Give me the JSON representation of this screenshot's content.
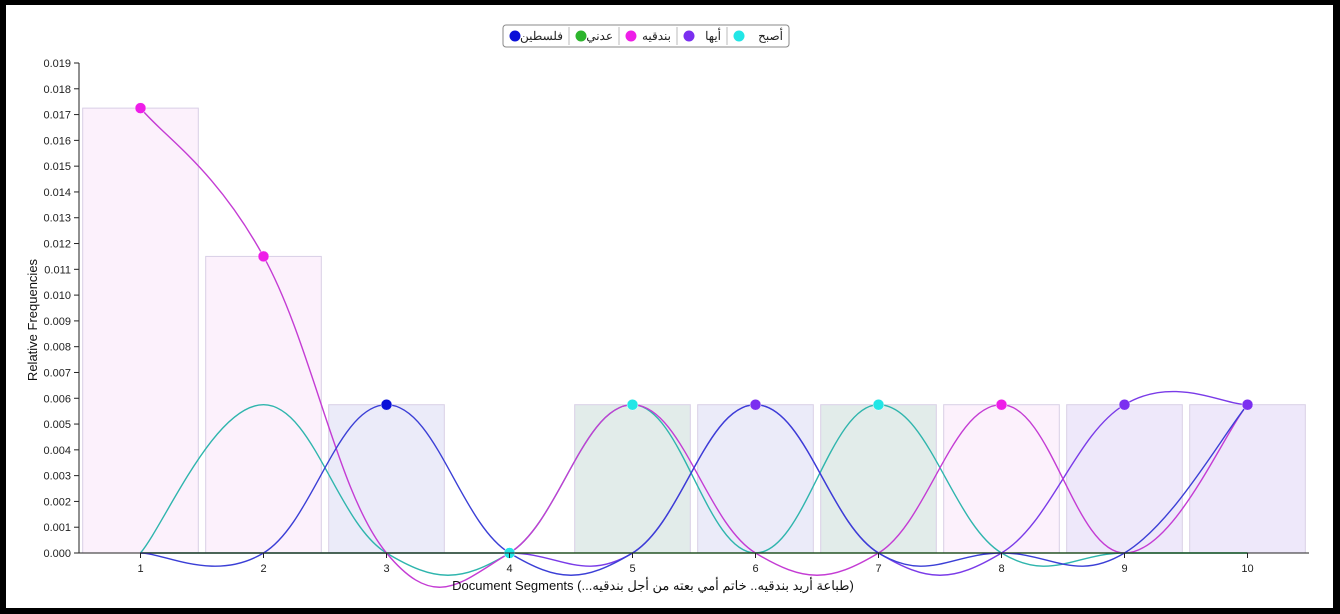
{
  "chart_data": {
    "type": "line",
    "xlabel": "Document Segments (...طباعة أريد بندقيه.. خاتم أمي بعته من أجل بندقيه)",
    "ylabel": "Relative Frequencies",
    "categories": [
      "1",
      "2",
      "3",
      "4",
      "5",
      "6",
      "7",
      "8",
      "9",
      "10"
    ],
    "ylim": [
      0,
      0.019
    ],
    "y_ticks": [
      "0.000",
      "0.001",
      "0.002",
      "0.003",
      "0.004",
      "0.005",
      "0.006",
      "0.007",
      "0.008",
      "0.009",
      "0.010",
      "0.011",
      "0.012",
      "0.013",
      "0.014",
      "0.015",
      "0.016",
      "0.017",
      "0.018",
      "0.019"
    ],
    "grid": false,
    "legend_position": "top-center",
    "series": [
      {
        "name": "أصبح",
        "color": "#22e6e6",
        "line_color": "#2fb5ad",
        "bar_color": "#dde9e6",
        "values": [
          0,
          0.00575,
          0,
          0,
          0.00575,
          0,
          0.00575,
          0,
          0,
          0
        ]
      },
      {
        "name": "أيها",
        "color": "#7b2ff0",
        "line_color": "#7a3be8",
        "bar_color": "#ebe4f9",
        "values": [
          0,
          0,
          0,
          0,
          0,
          0.00575,
          0,
          0,
          0.00575,
          0.00575
        ]
      },
      {
        "name": "بندقيه",
        "color": "#ee1ee8",
        "line_color": "#c43cd4",
        "bar_color": "#fbeefb",
        "values": [
          0.01725,
          0.0115,
          0,
          0,
          0.00575,
          0,
          0,
          0.00575,
          0,
          0.00575
        ]
      },
      {
        "name": "عدني",
        "color": "#2db52d",
        "line_color": "#2db52d",
        "bar_color": "#e6f2e6",
        "values": [
          0,
          0,
          0,
          0,
          0,
          0,
          0,
          0,
          0,
          0
        ]
      },
      {
        "name": "فلسطين",
        "color": "#0a10d8",
        "line_color": "#3b3fd6",
        "bar_color": "#e8e8f8",
        "values": [
          0,
          0,
          0.00575,
          0,
          0,
          0.00575,
          0,
          0,
          0,
          0.00575
        ]
      }
    ],
    "bars": {
      "values": [
        0.01725,
        0.0115,
        0.00575,
        0,
        0.00575,
        0.00575,
        0.00575,
        0.00575,
        0.00575,
        0.00575
      ],
      "series_index": [
        2,
        2,
        4,
        null,
        0,
        4,
        0,
        2,
        1,
        1
      ]
    },
    "marker_series": [
      2,
      2,
      4,
      0,
      0,
      1,
      0,
      2,
      1,
      1
    ]
  }
}
